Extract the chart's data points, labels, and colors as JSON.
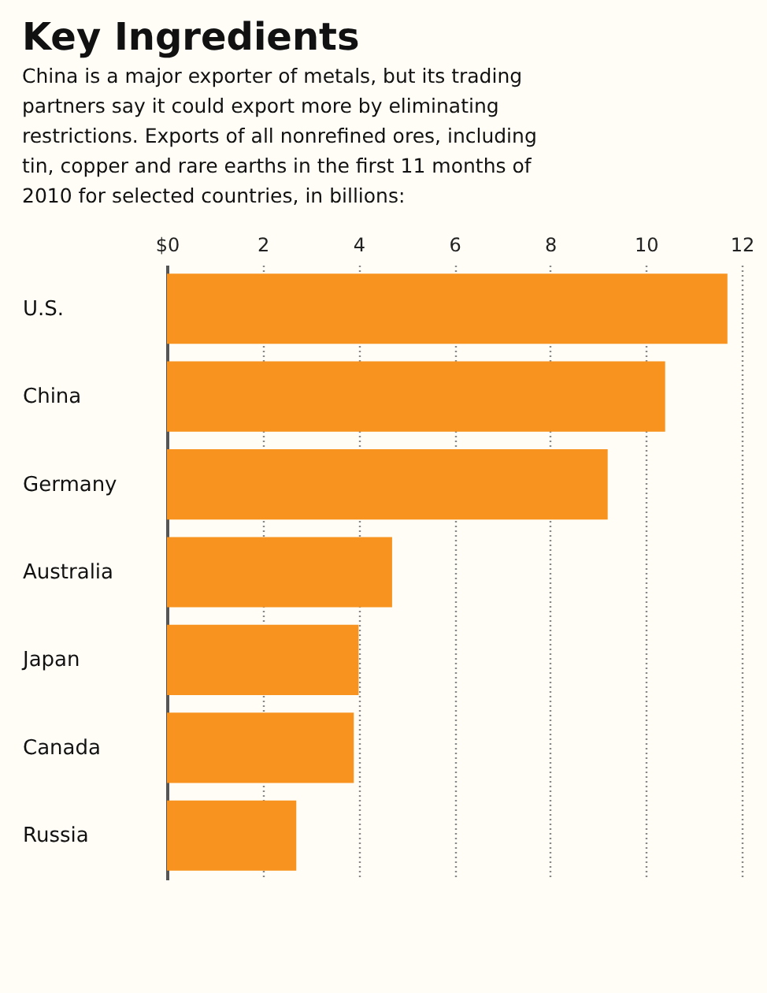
{
  "chart_data": {
    "type": "bar",
    "orientation": "horizontal",
    "title": "Key Ingredients",
    "subtitle": "China is a major exporter of metals, but its trading partners say it could export more by eliminating restrictions. Exports of all nonrefined ores, including tin, copper and rare earths in the first 11 months of 2010 for selected countries, in billions:",
    "categories": [
      "U.S.",
      "China",
      "Germany",
      "Australia",
      "Japan",
      "Canada",
      "Russia"
    ],
    "values": [
      11.7,
      10.4,
      9.2,
      4.7,
      4.0,
      3.9,
      2.7
    ],
    "color": "#f7931e",
    "xlim": [
      0,
      12
    ],
    "xticks": [
      {
        "value": 0,
        "label": "$0"
      },
      2,
      4,
      6,
      8,
      10,
      12
    ],
    "grid": "x"
  }
}
